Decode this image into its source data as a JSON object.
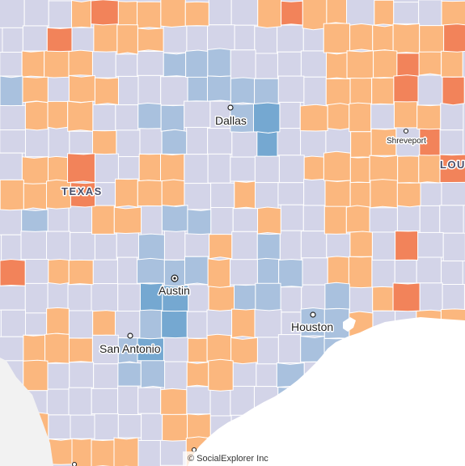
{
  "map": {
    "attribution": "© SocialExplorer Inc",
    "colors": {
      "background": "#f2f2f2",
      "water": "#ffffff",
      "county_border": "#ffffff",
      "neutral": "#d3d4e8",
      "lean_republican": "#fbb77e",
      "strong_republican": "#f2835a",
      "lean_democrat": "#a9c1de",
      "strong_democrat": "#75a8d1"
    },
    "state_labels": {
      "texas": "TEXAS",
      "louisiana": "LOU"
    },
    "cities": {
      "dallas": "Dallas",
      "shreveport": "Shreveport",
      "austin": "Austin",
      "houston": "Houston",
      "san_antonio": "San Antonio"
    }
  }
}
